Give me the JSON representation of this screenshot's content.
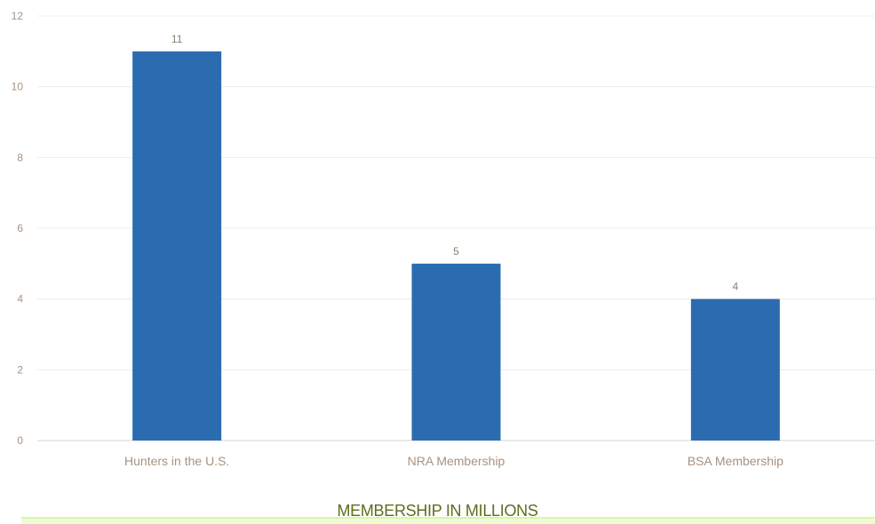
{
  "chart_data": {
    "type": "bar",
    "categories": [
      "Hunters in the U.S.",
      "NRA Membership",
      "BSA Membership"
    ],
    "values": [
      11,
      5,
      4
    ],
    "data_labels": [
      "11",
      "5",
      "4"
    ],
    "title": "",
    "xlabel": "MEMBERSHIP IN MILLIONS",
    "ylabel": "",
    "ylim": [
      0,
      12
    ],
    "yticks": [
      0,
      2,
      4,
      6,
      8,
      10,
      12
    ],
    "grid": true,
    "legend": "none",
    "bar_color": "#2b6cb0"
  }
}
